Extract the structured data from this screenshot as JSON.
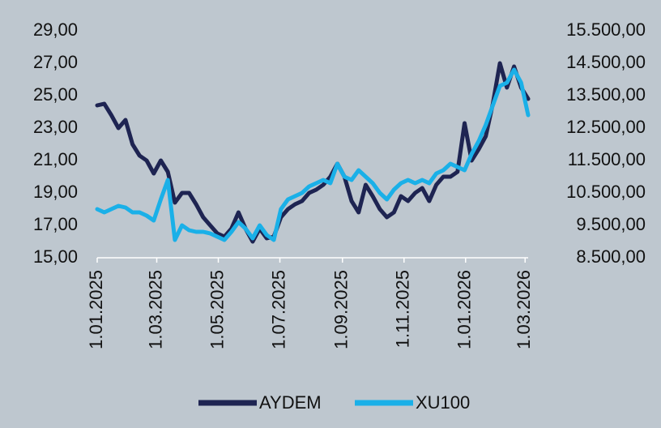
{
  "chart_data": {
    "type": "line",
    "x": [
      "2025-01-01",
      "2025-01-08",
      "2025-01-15",
      "2025-01-22",
      "2025-01-29",
      "2025-02-05",
      "2025-02-12",
      "2025-02-19",
      "2025-02-26",
      "2025-03-05",
      "2025-03-12",
      "2025-03-19",
      "2025-03-26",
      "2025-04-02",
      "2025-04-09",
      "2025-04-16",
      "2025-04-23",
      "2025-04-30",
      "2025-05-07",
      "2025-05-14",
      "2025-05-21",
      "2025-05-28",
      "2025-06-04",
      "2025-06-11",
      "2025-06-18",
      "2025-06-25",
      "2025-07-02",
      "2025-07-09",
      "2025-07-16",
      "2025-07-23",
      "2025-07-30",
      "2025-08-06",
      "2025-08-13",
      "2025-08-20",
      "2025-08-27",
      "2025-09-03",
      "2025-09-10",
      "2025-09-17",
      "2025-09-24",
      "2025-10-01",
      "2025-10-08",
      "2025-10-15",
      "2025-10-22",
      "2025-10-29",
      "2025-11-05",
      "2025-11-12",
      "2025-11-19",
      "2025-11-26",
      "2025-12-03",
      "2025-12-10",
      "2025-12-17",
      "2025-12-24",
      "2025-12-31",
      "2026-01-07",
      "2026-01-14",
      "2026-01-21",
      "2026-01-28",
      "2026-02-04",
      "2026-02-11",
      "2026-02-18",
      "2026-02-25",
      "2026-03-04"
    ],
    "series": [
      {
        "name": "AYDEM",
        "color": "#1e2452",
        "axis": "y",
        "values": [
          24.4,
          24.5,
          23.8,
          23.0,
          23.5,
          22.0,
          21.3,
          21.0,
          20.2,
          21.0,
          20.3,
          18.4,
          19.0,
          19.0,
          18.3,
          17.5,
          17.0,
          16.5,
          16.3,
          16.8,
          17.8,
          16.8,
          16.0,
          16.8,
          16.2,
          16.3,
          17.5,
          18.0,
          18.3,
          18.5,
          19.0,
          19.2,
          19.5,
          20.0,
          20.8,
          20.0,
          18.5,
          17.8,
          19.5,
          18.8,
          18.0,
          17.5,
          17.8,
          18.8,
          18.5,
          19.0,
          19.3,
          18.5,
          19.5,
          20.0,
          20.0,
          20.3,
          23.3,
          21.0,
          21.7,
          22.5,
          24.5,
          27.0,
          25.5,
          26.8,
          25.5,
          24.8
        ]
      },
      {
        "name": "XU100",
        "color": "#1ab0e8",
        "axis": "y2",
        "values": [
          10000,
          9900,
          10000,
          10100,
          10050,
          9900,
          9900,
          9800,
          9650,
          10300,
          10900,
          9050,
          9500,
          9350,
          9300,
          9300,
          9250,
          9150,
          9050,
          9300,
          9600,
          9400,
          9100,
          9500,
          9200,
          9050,
          10000,
          10300,
          10400,
          10500,
          10700,
          10800,
          10900,
          10800,
          11400,
          11000,
          10900,
          11200,
          11000,
          10800,
          10500,
          10300,
          10600,
          10800,
          10900,
          10800,
          10900,
          10800,
          11100,
          11200,
          11400,
          11300,
          11200,
          11700,
          12100,
          12600,
          13200,
          13800,
          13900,
          14300,
          13900,
          12900
        ]
      }
    ],
    "xlim": [
      "2025-01-01",
      "2026-03-04"
    ],
    "xticks": [
      {
        "value": "2025-01-01",
        "label": "1.01.2025"
      },
      {
        "value": "2025-03-01",
        "label": "1.03.2025"
      },
      {
        "value": "2025-05-01",
        "label": "1.05.2025"
      },
      {
        "value": "2025-07-01",
        "label": "1.07.2025"
      },
      {
        "value": "2025-09-01",
        "label": "1.09.2025"
      },
      {
        "value": "2025-11-01",
        "label": "1.11.2025"
      },
      {
        "value": "2026-01-01",
        "label": "1.01.2026"
      },
      {
        "value": "2026-03-01",
        "label": "1.03.2026"
      }
    ],
    "ylim": [
      15,
      29
    ],
    "yticks": [
      {
        "value": 15,
        "label": "15,00"
      },
      {
        "value": 17,
        "label": "17,00"
      },
      {
        "value": 19,
        "label": "19,00"
      },
      {
        "value": 21,
        "label": "21,00"
      },
      {
        "value": 23,
        "label": "23,00"
      },
      {
        "value": 25,
        "label": "25,00"
      },
      {
        "value": 27,
        "label": "27,00"
      },
      {
        "value": 29,
        "label": "29,00"
      }
    ],
    "y2lim": [
      8500,
      15500
    ],
    "y2ticks": [
      {
        "value": 8500,
        "label": "8.500,00"
      },
      {
        "value": 9500,
        "label": "9.500,00"
      },
      {
        "value": 10500,
        "label": "10.500,00"
      },
      {
        "value": 11500,
        "label": "11.500,00"
      },
      {
        "value": 12500,
        "label": "12.500,00"
      },
      {
        "value": 13500,
        "label": "13.500,00"
      },
      {
        "value": 14500,
        "label": "14.500,00"
      },
      {
        "value": 15500,
        "label": "15.500,00"
      }
    ],
    "legend": "bottom"
  }
}
